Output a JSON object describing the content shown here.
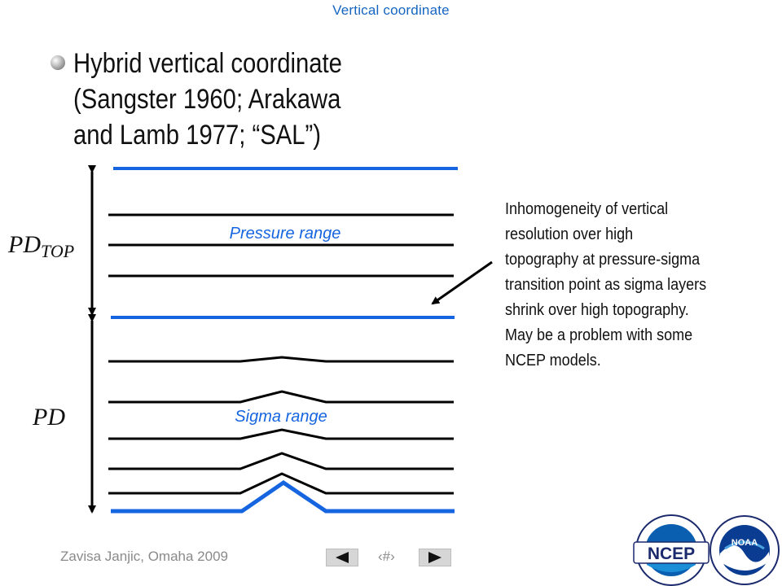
{
  "header": {
    "title": "Vertical coordinate"
  },
  "bullet": {
    "lines": [
      "Hybrid vertical coordinate",
      "(Sangster 1960; Arakawa",
      "and Lamb 1977; “SAL”)"
    ]
  },
  "diagram": {
    "pressure_label": "Pressure range",
    "sigma_label": "Sigma range",
    "pd_top_label": "PD",
    "pd_top_subscript": "TOP",
    "pd_label": "PD",
    "accent_color": "#1565e0",
    "line_color": "#000000"
  },
  "annotation": {
    "lines": [
      "Inhomogeneity of vertical",
      "resolution over high",
      "topography at pressure-sigma",
      "transition point as sigma layers",
      "shrink over high topography.",
      "May be a problem with some",
      "NCEP models."
    ]
  },
  "footer": {
    "author": "Zavisa Janjic, Omaha 2009",
    "page_mark": "‹#›"
  },
  "logos": {
    "ncep": "NCEP",
    "noaa": "NOAA"
  }
}
